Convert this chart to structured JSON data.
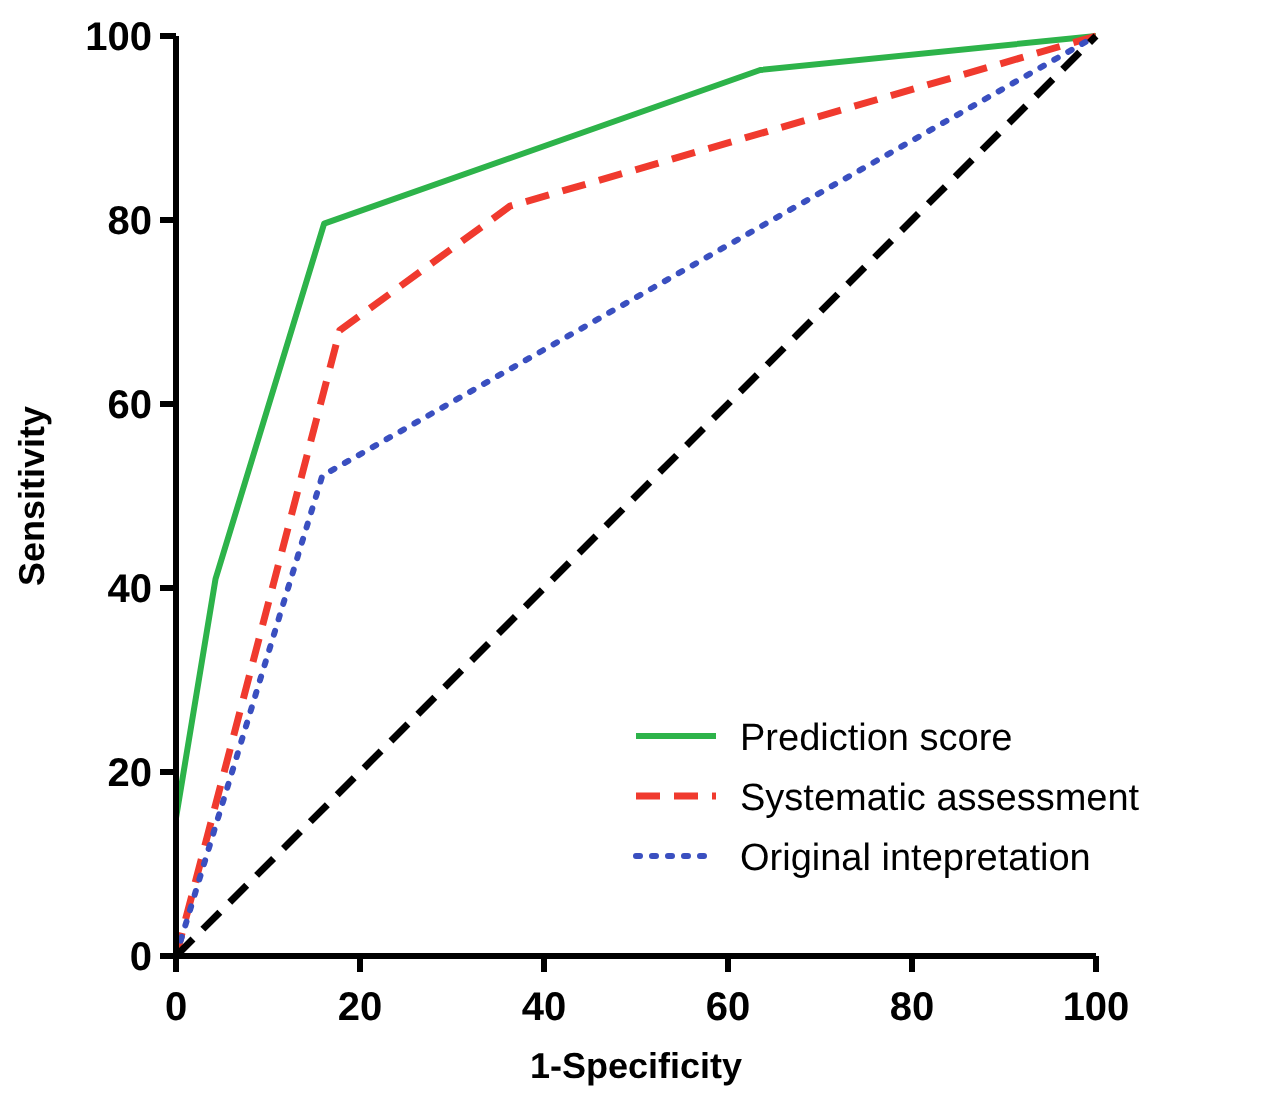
{
  "chart_data": {
    "type": "line",
    "xlabel": "1-Specificity",
    "ylabel": "Sensitivity",
    "xlim": [
      0,
      100
    ],
    "ylim": [
      0,
      100
    ],
    "xticks": [
      0,
      20,
      40,
      60,
      80,
      100
    ],
    "yticks": [
      0,
      20,
      40,
      60,
      80,
      100
    ],
    "grid": false,
    "legend": "bottom right",
    "marker": "none",
    "series": [
      {
        "name": "Prediction score",
        "color": "#2db34a",
        "line_style": "solid",
        "x": [
          0,
          0,
          4.3,
          16.1,
          63.5,
          100
        ],
        "values": [
          0,
          15,
          41,
          79.6,
          96.3,
          100
        ]
      },
      {
        "name": "Systematic assessment",
        "color": "#f03a2e",
        "line_style": "dashed",
        "x": [
          0,
          17.8,
          36.3,
          100
        ],
        "values": [
          0,
          68,
          81.5,
          100
        ]
      },
      {
        "name": "Original intepretation",
        "color": "#3a4fc0",
        "line_style": "dotted",
        "x": [
          0,
          15.9,
          100
        ],
        "values": [
          0,
          52.2,
          100
        ]
      },
      {
        "color": "#000000",
        "line_style": "dashed",
        "x": [
          0,
          100
        ],
        "values": [
          0,
          100
        ]
      }
    ]
  }
}
